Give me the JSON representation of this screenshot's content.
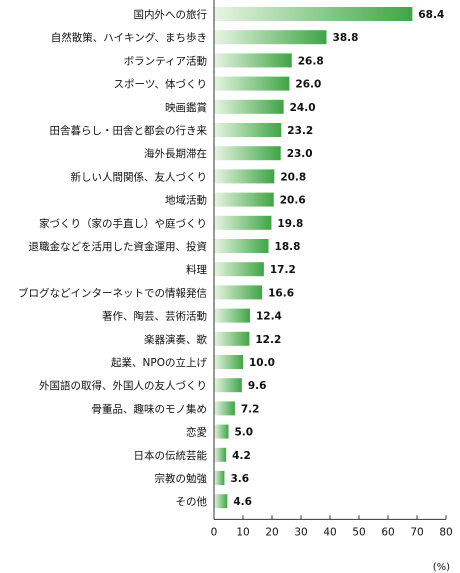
{
  "chart_data": {
    "type": "bar",
    "orientation": "horizontal",
    "categories": [
      "国内外への旅行",
      "自然散策、ハイキング、まち歩き",
      "ボランティア活動",
      "スポーツ、体づくり",
      "映画鑑賞",
      "田舎暮らし・田舎と都会の行き来",
      "海外長期滞在",
      "新しい人間関係、友人づくり",
      "地域活動",
      "家づくり（家の手直し）や庭づくり",
      "退職金などを活用した資金運用、投資",
      "料理",
      "ブログなどインターネットでの情報発信",
      "著作、陶芸、芸術活動",
      "楽器演奏、歌",
      "起業、NPOの立上げ",
      "外国語の取得、外国人の友人づくり",
      "骨董品、趣味のモノ集め",
      "恋愛",
      "日本の伝統芸能",
      "宗教の勉強",
      "その他"
    ],
    "values": [
      68.4,
      38.8,
      26.8,
      26.0,
      24.0,
      23.2,
      23.0,
      20.8,
      20.6,
      19.8,
      18.8,
      17.2,
      16.6,
      12.4,
      12.2,
      10.0,
      9.6,
      7.2,
      5.0,
      4.2,
      3.6,
      4.6
    ],
    "value_labels": [
      "68.4",
      "38.8",
      "26.8",
      "26.0",
      "24.0",
      "23.2",
      "23.0",
      "20.8",
      "20.6",
      "19.8",
      "18.8",
      "17.2",
      "16.6",
      "12.4",
      "12.2",
      "10.0",
      "9.6",
      "7.2",
      "5.0",
      "4.2",
      "3.6",
      "4.6"
    ],
    "xlim": [
      0,
      80
    ],
    "xticks": [
      "0",
      "10",
      "20",
      "30",
      "40",
      "50",
      "60",
      "70",
      "80"
    ],
    "xunit": "(%)",
    "grid": false,
    "colors": {
      "bar_start": "#e8f5e3",
      "bar_end": "#3fa546",
      "axis": "#333333"
    }
  }
}
